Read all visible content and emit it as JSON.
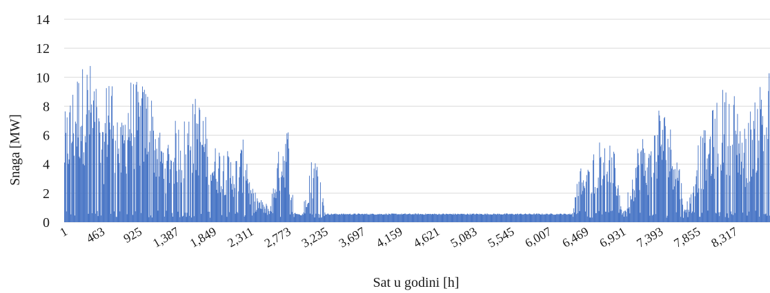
{
  "chart_data": {
    "type": "bar",
    "title": "",
    "xlabel": "Sat u godini [h]",
    "ylabel": "Snaga [MW]",
    "ylim": [
      0,
      14
    ],
    "yticks": [
      0,
      2,
      4,
      6,
      8,
      10,
      12,
      14
    ],
    "grid": true,
    "legend": "none",
    "xlim": [
      1,
      8760
    ],
    "xtick_values": [
      1,
      463,
      925,
      1387,
      1849,
      2311,
      2773,
      3235,
      3697,
      4159,
      4621,
      5083,
      5545,
      6007,
      6469,
      6931,
      7393,
      7855,
      8317
    ],
    "xtick_labels": [
      "1",
      "463",
      "925",
      "1,387",
      "1,849",
      "2,311",
      "2,773",
      "3,235",
      "3,697",
      "4,159",
      "4,621",
      "5,083",
      "5,545",
      "6,007",
      "6,469",
      "6,931",
      "7,393",
      "7,855",
      "8,317"
    ],
    "series": [
      {
        "color": "#4472c4",
        "x": [
          1,
          150,
          300,
          400,
          463,
          550,
          650,
          700,
          800,
          925,
          1050,
          1150,
          1250,
          1387,
          1450,
          1550,
          1650,
          1750,
          1849,
          1950,
          2050,
          2150,
          2250,
          2311,
          2450,
          2550,
          2650,
          2700,
          2773,
          2850,
          2950,
          3050,
          3150,
          3235,
          3300,
          3697,
          4159,
          4621,
          5083,
          5545,
          6007,
          6300,
          6400,
          6469,
          6550,
          6650,
          6750,
          6850,
          6931,
          7050,
          7150,
          7250,
          7393,
          7500,
          7600,
          7700,
          7855,
          7950,
          8050,
          8150,
          8250,
          8317,
          8450,
          8550,
          8650,
          8760
        ],
        "values": [
          7.5,
          10.5,
          11.4,
          10,
          5.5,
          11.9,
          8.8,
          6.5,
          10.2,
          9.6,
          9.8,
          7,
          5.5,
          7.2,
          6.8,
          8.2,
          8.9,
          7.5,
          5.3,
          5.5,
          4.8,
          4.7,
          6.2,
          2.5,
          1.5,
          1.2,
          4.8,
          6.0,
          7.0,
          0.7,
          0.5,
          4.4,
          4.6,
          0.6,
          0.6,
          0.6,
          0.6,
          0.6,
          0.6,
          0.6,
          0.6,
          0.6,
          4.3,
          3.5,
          4.5,
          7.2,
          6.3,
          4.3,
          0.6,
          3.7,
          6.5,
          5.0,
          8.6,
          7.0,
          5.8,
          0.8,
          5.7,
          6.5,
          8.0,
          9.4,
          9.1,
          9.1,
          6.5,
          8.8,
          10.3,
          10.7
        ]
      }
    ]
  }
}
